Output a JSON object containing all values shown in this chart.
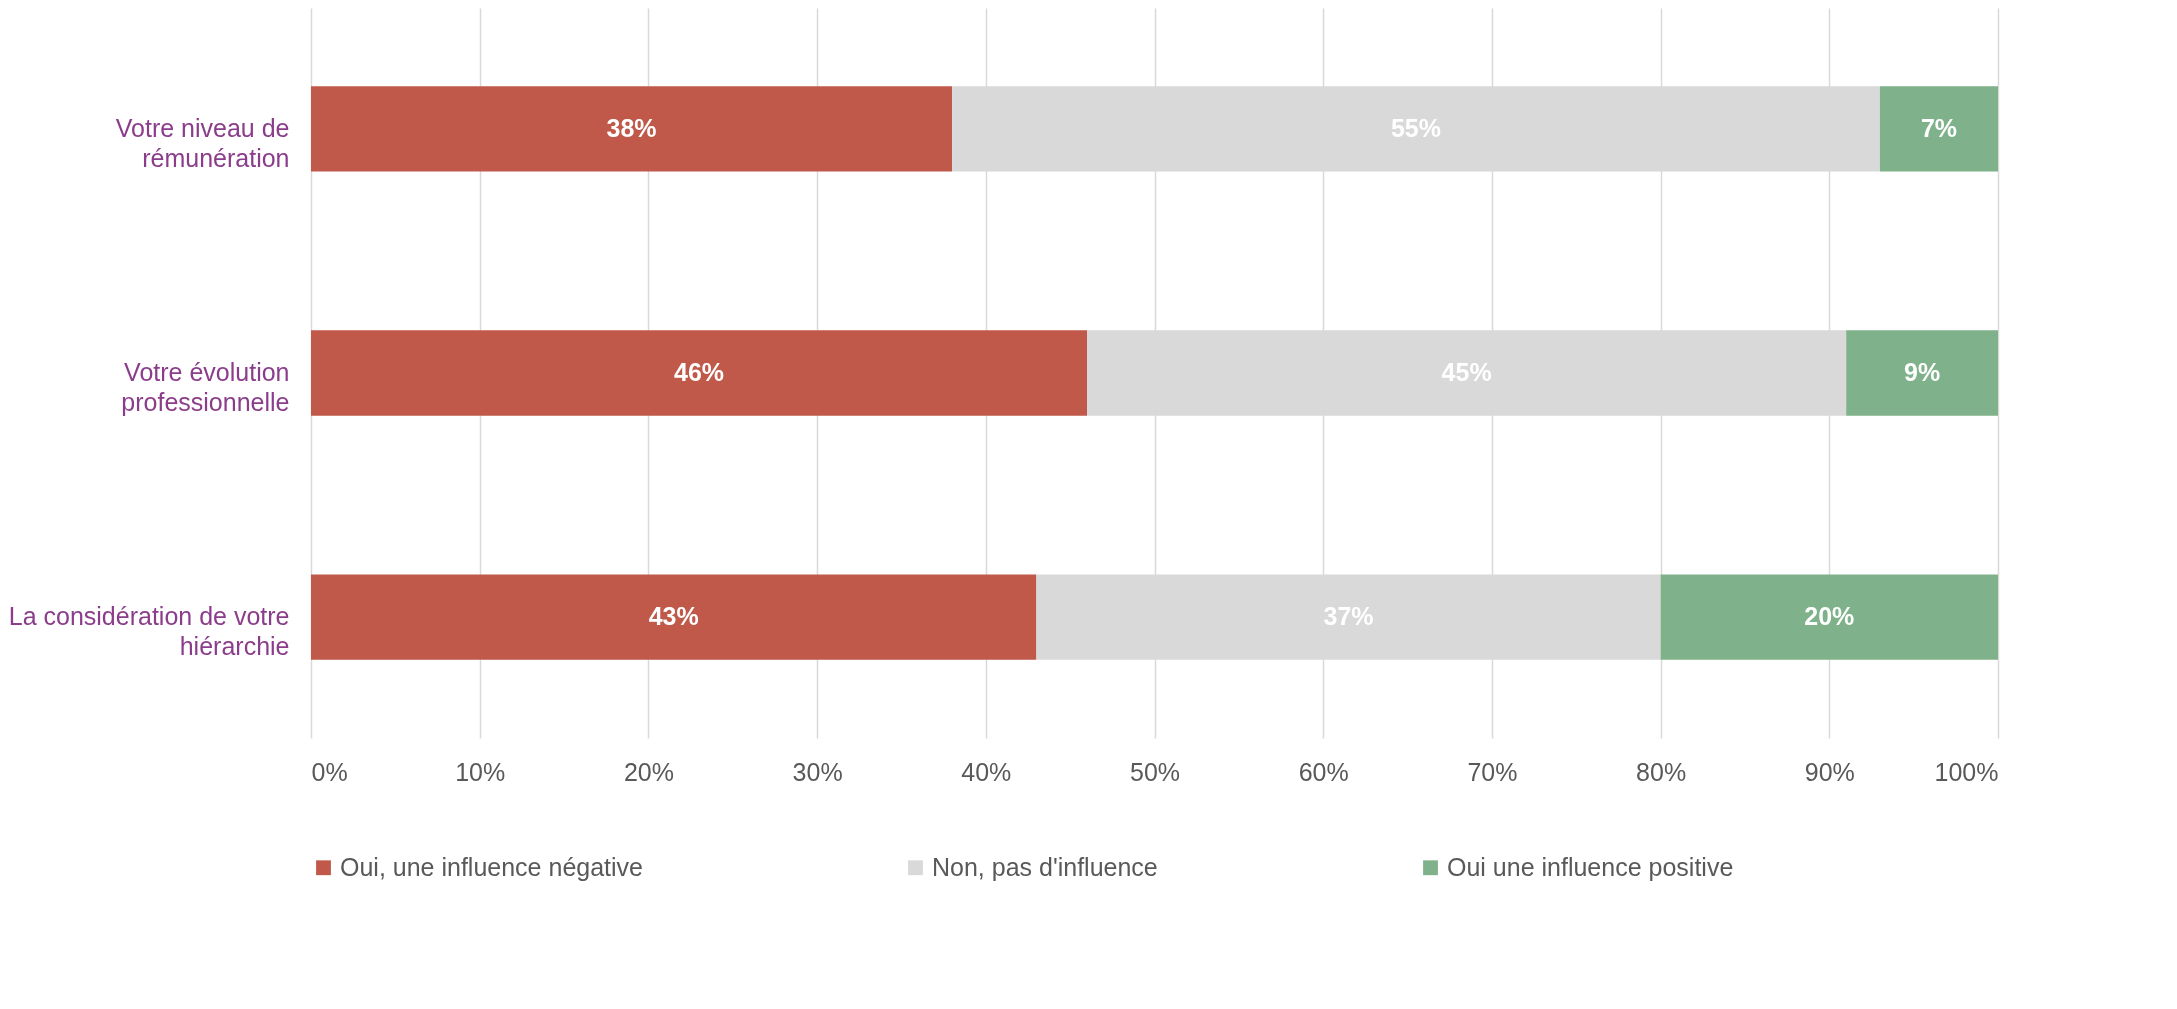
{
  "chart_data": {
    "type": "bar",
    "orientation": "horizontal",
    "stacked": true,
    "categories": [
      "Votre niveau de rémunération",
      "Votre évolution professionnelle",
      "La considération de votre hiérarchie"
    ],
    "series": [
      {
        "name": "Oui, une influence négative",
        "color": "#c0594a",
        "values": [
          38,
          46,
          43
        ],
        "value_labels": [
          "38%",
          "46%",
          "43%"
        ]
      },
      {
        "name": "Non, pas d'influence",
        "color": "#d9d9d9",
        "values": [
          55,
          45,
          37
        ],
        "value_labels": [
          "55%",
          "45%",
          "37%"
        ]
      },
      {
        "name": "Oui une influence positive",
        "color": "#7fb28a",
        "values": [
          7,
          9,
          20
        ],
        "value_labels": [
          "7%",
          "9%",
          "20%"
        ]
      }
    ],
    "xlim": [
      0,
      100
    ],
    "xticks": [
      {
        "value": 0,
        "label": "0%"
      },
      {
        "value": 10,
        "label": "10%"
      },
      {
        "value": 20,
        "label": "20%"
      },
      {
        "value": 30,
        "label": "30%"
      },
      {
        "value": 40,
        "label": "40%"
      },
      {
        "value": 50,
        "label": "50%"
      },
      {
        "value": 60,
        "label": "60%"
      },
      {
        "value": 70,
        "label": "70%"
      },
      {
        "value": 80,
        "label": "80%"
      },
      {
        "value": 90,
        "label": "90%"
      },
      {
        "value": 100,
        "label": "100%"
      }
    ],
    "grid": "x",
    "legend": "bottom"
  }
}
